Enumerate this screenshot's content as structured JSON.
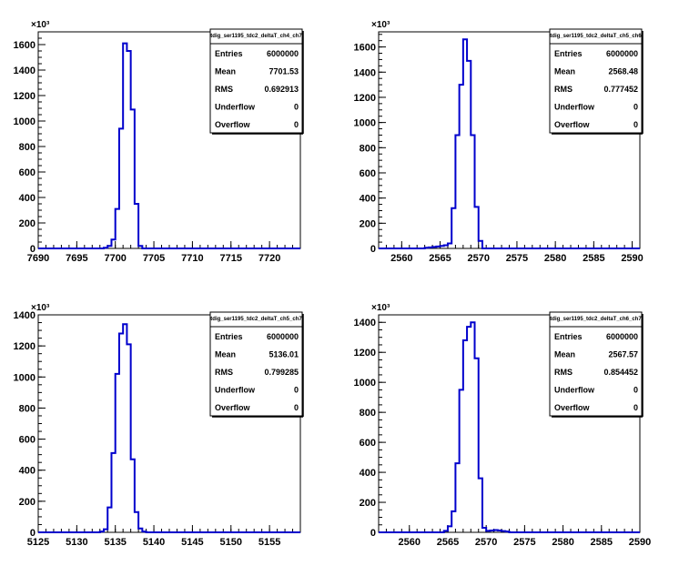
{
  "y_exponent_label": "×10³",
  "chart_data": [
    {
      "type": "histogram",
      "title": "tdig_ser1195_tdc2_deltaT_ch4_ch7",
      "xlim": [
        7690,
        7724
      ],
      "ylim": [
        0,
        1700
      ],
      "x_ticks": [
        7690,
        7695,
        7700,
        7705,
        7710,
        7715,
        7720
      ],
      "y_ticks": [
        0,
        200,
        400,
        600,
        800,
        1000,
        1200,
        1400,
        1600
      ],
      "y_unit": "x10^3",
      "bin_width": 0.5,
      "bins_x": [
        7698.5,
        7699.0,
        7699.5,
        7700.0,
        7700.5,
        7701.0,
        7701.5,
        7702.0,
        7702.5,
        7703.0
      ],
      "values": [
        5,
        20,
        70,
        310,
        940,
        1610,
        1550,
        1090,
        350,
        20
      ],
      "stats": {
        "Entries": "6000000",
        "Mean": "7701.53",
        "RMS": "0.692913",
        "Underflow": "0",
        "Overflow": "0"
      }
    },
    {
      "type": "histogram",
      "title": "tdig_ser1195_tdc2_deltaT_ch5_ch6",
      "xlim": [
        2557,
        2591
      ],
      "ylim": [
        0,
        1720
      ],
      "x_ticks": [
        2560,
        2565,
        2570,
        2575,
        2580,
        2585,
        2590
      ],
      "y_ticks": [
        0,
        200,
        400,
        600,
        800,
        1000,
        1200,
        1400,
        1600
      ],
      "y_unit": "x10^3",
      "bin_width": 0.5,
      "bins_x": [
        2563.0,
        2563.5,
        2564.0,
        2564.5,
        2565.0,
        2565.5,
        2566.0,
        2566.5,
        2567.0,
        2567.5,
        2568.0,
        2568.5,
        2569.0,
        2569.5,
        2570.0
      ],
      "values": [
        5,
        8,
        12,
        15,
        20,
        25,
        40,
        320,
        900,
        1300,
        1660,
        1490,
        900,
        330,
        60
      ],
      "stats": {
        "Entries": "6000000",
        "Mean": "2568.48",
        "RMS": "0.777452",
        "Underflow": "0",
        "Overflow": "0"
      }
    },
    {
      "type": "histogram",
      "title": "tdig_ser1195_tdc2_deltaT_ch5_ch7",
      "xlim": [
        5125,
        5159
      ],
      "ylim": [
        0,
        1400
      ],
      "x_ticks": [
        5125,
        5130,
        5135,
        5140,
        5145,
        5150,
        5155
      ],
      "y_ticks": [
        0,
        200,
        400,
        600,
        800,
        1000,
        1200,
        1400
      ],
      "y_unit": "x10^3",
      "bin_width": 0.5,
      "bins_x": [
        5133.0,
        5133.5,
        5134.0,
        5134.5,
        5135.0,
        5135.5,
        5136.0,
        5136.5,
        5137.0,
        5137.5,
        5138.0,
        5138.5
      ],
      "values": [
        5,
        20,
        160,
        510,
        1020,
        1280,
        1340,
        1210,
        470,
        130,
        25,
        5
      ],
      "stats": {
        "Entries": "6000000",
        "Mean": "5136.01",
        "RMS": "0.799285",
        "Underflow": "0",
        "Overflow": "0"
      }
    },
    {
      "type": "histogram",
      "title": "tdig_ser1195_tdc2_deltaT_ch6_ch7",
      "xlim": [
        2556,
        2590
      ],
      "ylim": [
        0,
        1450
      ],
      "x_ticks": [
        2560,
        2565,
        2570,
        2575,
        2580,
        2585,
        2590
      ],
      "y_ticks": [
        0,
        200,
        400,
        600,
        800,
        1000,
        1200,
        1400
      ],
      "y_unit": "x10^3",
      "bin_width": 0.5,
      "bins_x": [
        2564.5,
        2565.0,
        2565.5,
        2566.0,
        2566.5,
        2567.0,
        2567.5,
        2568.0,
        2568.5,
        2569.0,
        2569.5,
        2570.0,
        2570.5,
        2571.0,
        2571.5,
        2572.0,
        2572.5
      ],
      "values": [
        10,
        40,
        140,
        460,
        950,
        1280,
        1370,
        1400,
        1160,
        360,
        30,
        10,
        12,
        15,
        12,
        8,
        5
      ],
      "stats": {
        "Entries": "6000000",
        "Mean": "2567.57",
        "RMS": "0.854452",
        "Underflow": "0",
        "Overflow": "0"
      }
    }
  ]
}
